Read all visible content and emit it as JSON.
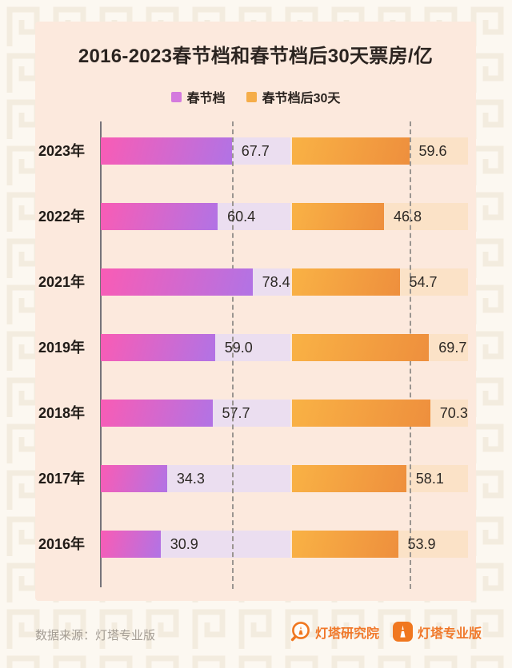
{
  "title": "2016-2023春节档和春节档后30天票房/亿",
  "legend": [
    {
      "label": "春节档",
      "color": "#d47ade"
    },
    {
      "label": "春节档后30天",
      "color": "#f5ad49"
    }
  ],
  "chart_data": {
    "type": "bar",
    "orientation": "horizontal",
    "title": "2016-2023春节档和春节档后30天票房/亿",
    "unit": "亿",
    "categories": [
      "2023年",
      "2022年",
      "2021年",
      "2019年",
      "2018年",
      "2017年",
      "2016年"
    ],
    "series": [
      {
        "name": "春节档",
        "values": [
          67.7,
          60.4,
          78.4,
          59.0,
          57.7,
          34.3,
          30.9
        ],
        "color_start": "#f95cb5",
        "color_end": "#b173e5",
        "track_color": "#ebdef0",
        "axis_max": 98
      },
      {
        "name": "春节档后30天",
        "values": [
          59.6,
          46.8,
          54.7,
          69.7,
          70.3,
          58.1,
          53.9
        ],
        "color_start": "#f9b245",
        "color_end": "#ee8f3d",
        "track_color": "#fbe2c7",
        "axis_max": 89.5
      }
    ],
    "reference_lines": {
      "chunjie": 67.7,
      "after30": 59.6
    },
    "grid": "dashed-vertical-reference",
    "legend_position": "top"
  },
  "footer": {
    "source": "数据来源：灯塔专业版",
    "logos": [
      {
        "label": "灯塔研究院"
      },
      {
        "label": "灯塔专业版"
      }
    ]
  },
  "colors": {
    "card_bg": "#fce9dd",
    "page_bg": "#fcf8f1",
    "pattern": "#f3ecdf",
    "axis": "#767379",
    "dash": "#9a9590",
    "text": "#2b2420",
    "brand_orange": "#f0782a"
  }
}
